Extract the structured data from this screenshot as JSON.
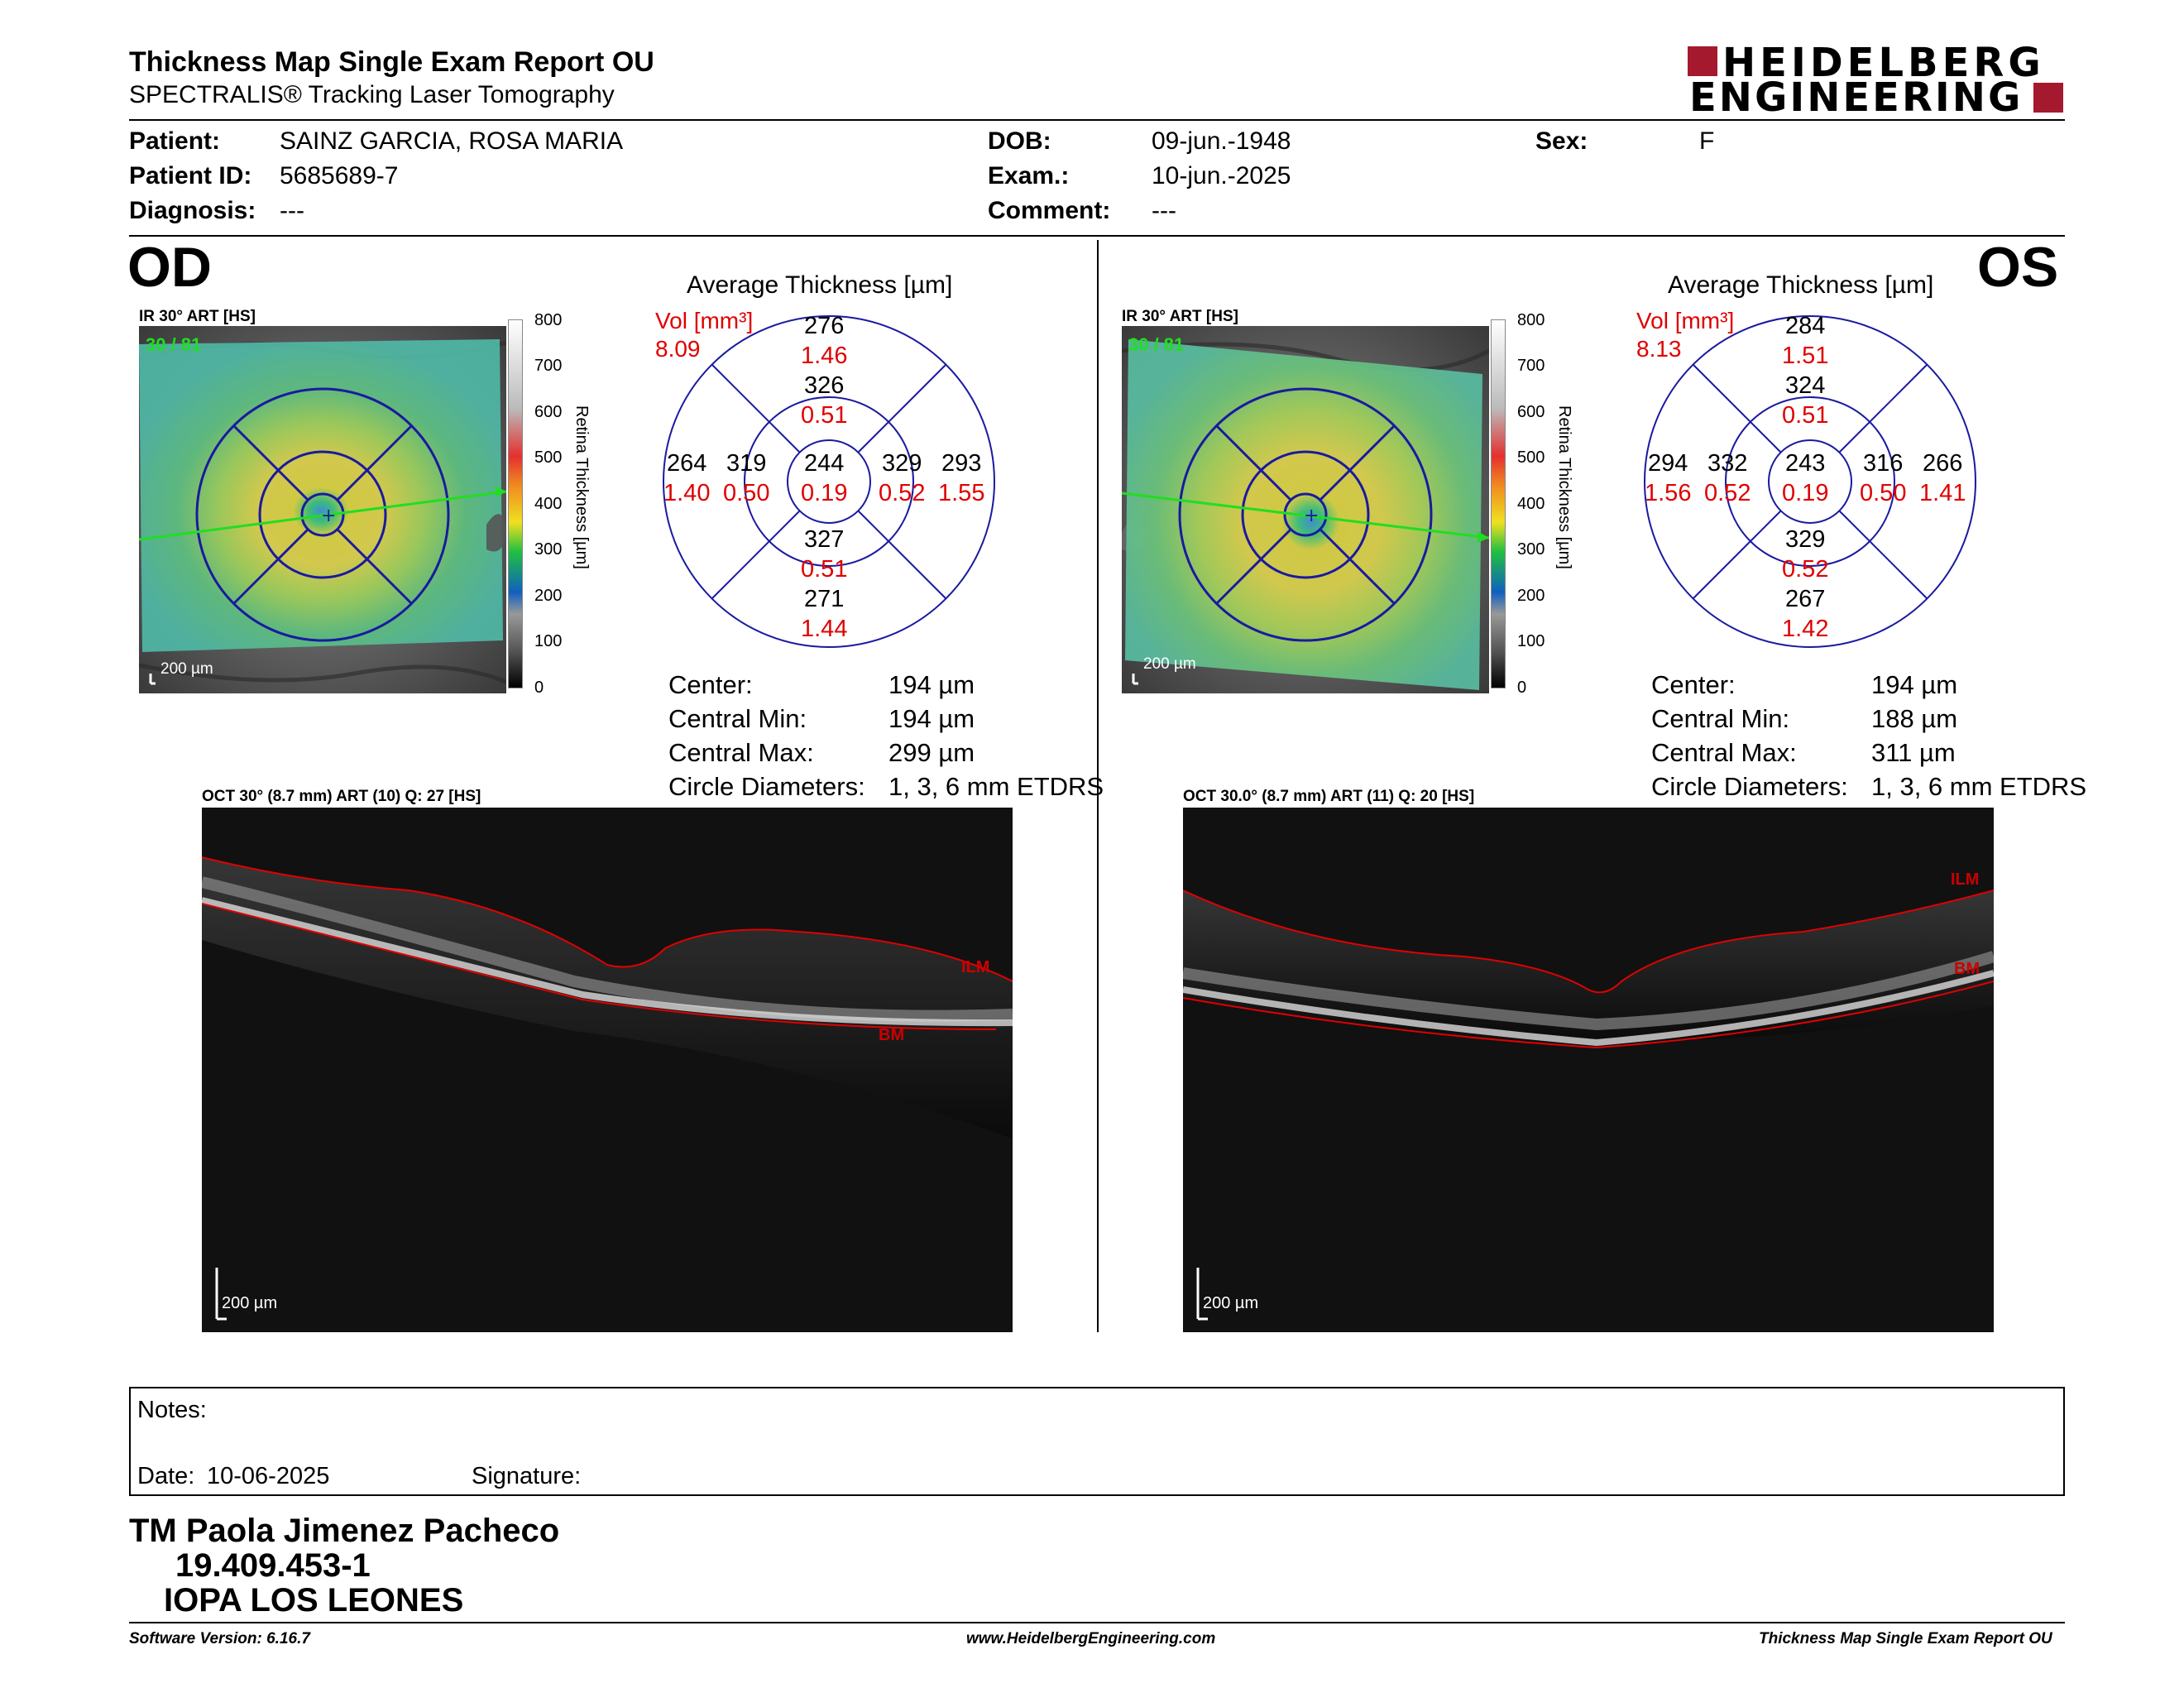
{
  "header": {
    "title": "Thickness Map Single Exam Report OU",
    "subtitle": "SPECTRALIS® Tracking Laser Tomography",
    "logo_line1": "HEIDELBERG",
    "logo_line2": "ENGINEERING",
    "brand_color": "#a5192e"
  },
  "patient": {
    "patient_label": "Patient:",
    "patient_value": "SAINZ GARCIA, ROSA MARIA",
    "id_label": "Patient ID:",
    "id_value": "5685689-7",
    "diagnosis_label": "Diagnosis:",
    "diagnosis_value": "---",
    "dob_label": "DOB:",
    "dob_value": "09-jun.-1948",
    "exam_label": "Exam.:",
    "exam_value": "10-jun.-2025",
    "comment_label": "Comment:",
    "comment_value": "---",
    "sex_label": "Sex:",
    "sex_value": "F"
  },
  "od": {
    "eye_label": "OD",
    "ir_label": "IR 30° ART [HS]",
    "ir_overlay": "30 / 81",
    "scale_label": "200 µm",
    "avg_title": "Average Thickness [µm]",
    "vol_label": "Vol [mm³]",
    "vol_value": "8.09",
    "grid": {
      "outer_top_t": "276",
      "outer_top_v": "1.46",
      "inner_top_t": "326",
      "inner_top_v": "0.51",
      "outer_left_t": "264",
      "outer_left_v": "1.40",
      "inner_left_t": "319",
      "inner_left_v": "0.50",
      "center_t": "244",
      "center_v": "0.19",
      "inner_right_t": "329",
      "inner_right_v": "0.52",
      "outer_right_t": "293",
      "outer_right_v": "1.55",
      "inner_bottom_t": "327",
      "inner_bottom_v": "0.51",
      "outer_bottom_t": "271",
      "outer_bottom_v": "1.44"
    },
    "stats": {
      "center_label": "Center:",
      "center_value": "194 µm",
      "min_label": "Central Min:",
      "min_value": "194 µm",
      "max_label": "Central Max:",
      "max_value": "299 µm",
      "circ_label": "Circle Diameters:",
      "circ_value": "1, 3, 6 mm ETDRS"
    },
    "oct_label": "OCT 30° (8.7 mm) ART (10) Q: 27 [HS]",
    "oct_scale": "200 µm",
    "ilm": "ILM",
    "bm": "BM"
  },
  "os": {
    "eye_label": "OS",
    "ir_label": "IR 30° ART [HS]",
    "ir_overlay": "30 / 81",
    "scale_label": "200 µm",
    "avg_title": "Average Thickness [µm]",
    "vol_label": "Vol [mm³]",
    "vol_value": "8.13",
    "grid": {
      "outer_top_t": "284",
      "outer_top_v": "1.51",
      "inner_top_t": "324",
      "inner_top_v": "0.51",
      "outer_left_t": "294",
      "outer_left_v": "1.56",
      "inner_left_t": "332",
      "inner_left_v": "0.52",
      "center_t": "243",
      "center_v": "0.19",
      "inner_right_t": "316",
      "inner_right_v": "0.50",
      "outer_right_t": "266",
      "outer_right_v": "1.41",
      "inner_bottom_t": "329",
      "inner_bottom_v": "0.52",
      "outer_bottom_t": "267",
      "outer_bottom_v": "1.42"
    },
    "stats": {
      "center_label": "Center:",
      "center_value": "194 µm",
      "min_label": "Central Min:",
      "min_value": "188 µm",
      "max_label": "Central Max:",
      "max_value": "311 µm",
      "circ_label": "Circle Diameters:",
      "circ_value": "1, 3, 6 mm ETDRS"
    },
    "oct_label": "OCT 30.0° (8.7 mm) ART (11) Q: 20 [HS]",
    "oct_scale": "200 µm",
    "ilm": "ILM",
    "bm": "BM"
  },
  "colorbar": {
    "ticks": [
      "800",
      "700",
      "600",
      "500",
      "400",
      "300",
      "200",
      "100",
      "0"
    ],
    "title": "Retina Thickness [µm]"
  },
  "notes": {
    "notes_label": "Notes:",
    "date_label": "Date:",
    "date_value": "10-06-2025",
    "signature_label": "Signature:"
  },
  "signer": {
    "name": "TM Paola Jimenez Pacheco",
    "id": "19.409.453-1",
    "org": "IOPA LOS LEONES"
  },
  "footer": {
    "software": "Software Version: 6.16.7",
    "website": "www.HeidelbergEngineering.com",
    "report": "Thickness Map Single Exam Report OU"
  }
}
